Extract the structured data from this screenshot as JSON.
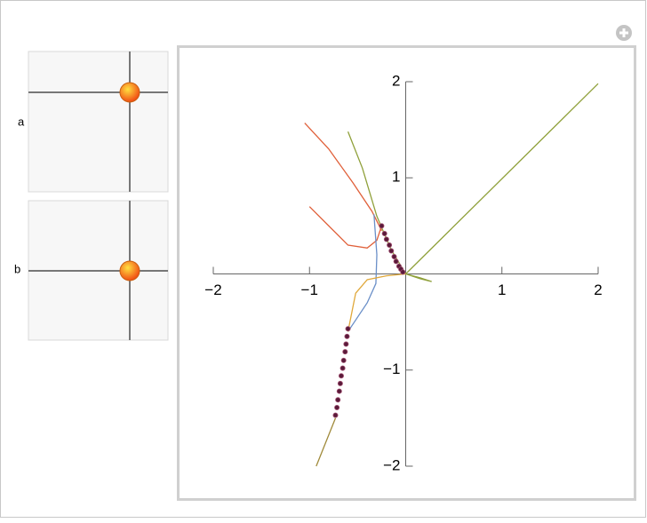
{
  "controls": [
    {
      "label": "a"
    },
    {
      "label": "b"
    }
  ],
  "chart_data": {
    "type": "line",
    "xlim": [
      -2,
      2
    ],
    "ylim": [
      -2,
      2
    ],
    "xticks": [
      {
        "value": -2,
        "label": "−2"
      },
      {
        "value": -1,
        "label": "−1"
      },
      1,
      2
    ],
    "yticks": [
      {
        "value": -2,
        "label": "−2"
      },
      {
        "value": -1,
        "label": "−1"
      },
      1,
      2
    ],
    "series": [
      {
        "color": "#8fa03a",
        "x": [
          0,
          2
        ],
        "values": [
          0,
          1.98
        ]
      },
      {
        "color": "#8fa03a",
        "x": [
          -0.6,
          -0.45,
          -0.3,
          -0.15,
          0,
          0.15,
          0.27,
          0.15,
          0
        ],
        "values": [
          1.48,
          1.1,
          0.6,
          0.25,
          0,
          -0.05,
          -0.08,
          -0.04,
          0
        ]
      },
      {
        "color": "#e0603a",
        "x": [
          -1.05,
          -0.8,
          -0.55,
          -0.35,
          -0.25
        ],
        "values": [
          1.57,
          1.3,
          0.95,
          0.65,
          0.45
        ]
      },
      {
        "color": "#e0603a",
        "x": [
          -1.0,
          -0.8,
          -0.6,
          -0.4,
          -0.3,
          -0.25
        ],
        "values": [
          0.7,
          0.5,
          0.3,
          0.27,
          0.35,
          0.5
        ]
      },
      {
        "color": "#6a8fc8",
        "x": [
          -0.33,
          -0.3,
          -0.31,
          -0.4,
          -0.6
        ],
        "values": [
          0.62,
          0.2,
          -0.1,
          -0.3,
          -0.6
        ]
      },
      {
        "color": "#e0a83a",
        "x": [
          -0.6,
          -0.52,
          -0.4,
          -0.2,
          0
        ],
        "values": [
          -0.6,
          -0.2,
          -0.06,
          -0.02,
          0
        ]
      },
      {
        "color": "#a08a3a",
        "x": [
          -0.93,
          -0.73
        ],
        "values": [
          -2.0,
          -1.5
        ]
      },
      {
        "color": "#5a1a3a",
        "marker": true,
        "x": [
          -0.25,
          -0.22,
          -0.2,
          -0.17,
          -0.15,
          -0.12,
          -0.1,
          -0.07,
          -0.05,
          -0.03
        ],
        "values": [
          0.5,
          0.42,
          0.36,
          0.3,
          0.24,
          0.18,
          0.13,
          0.08,
          0.05,
          0.02
        ]
      },
      {
        "color": "#5a1a3a",
        "marker": true,
        "x": [
          -0.6,
          -0.61,
          -0.62,
          -0.63,
          -0.645,
          -0.655,
          -0.67,
          -0.68,
          -0.69,
          -0.705,
          -0.715,
          -0.73
        ],
        "values": [
          -0.57,
          -0.65,
          -0.73,
          -0.81,
          -0.9,
          -0.98,
          -1.06,
          -1.14,
          -1.22,
          -1.31,
          -1.39,
          -1.47
        ]
      }
    ]
  }
}
